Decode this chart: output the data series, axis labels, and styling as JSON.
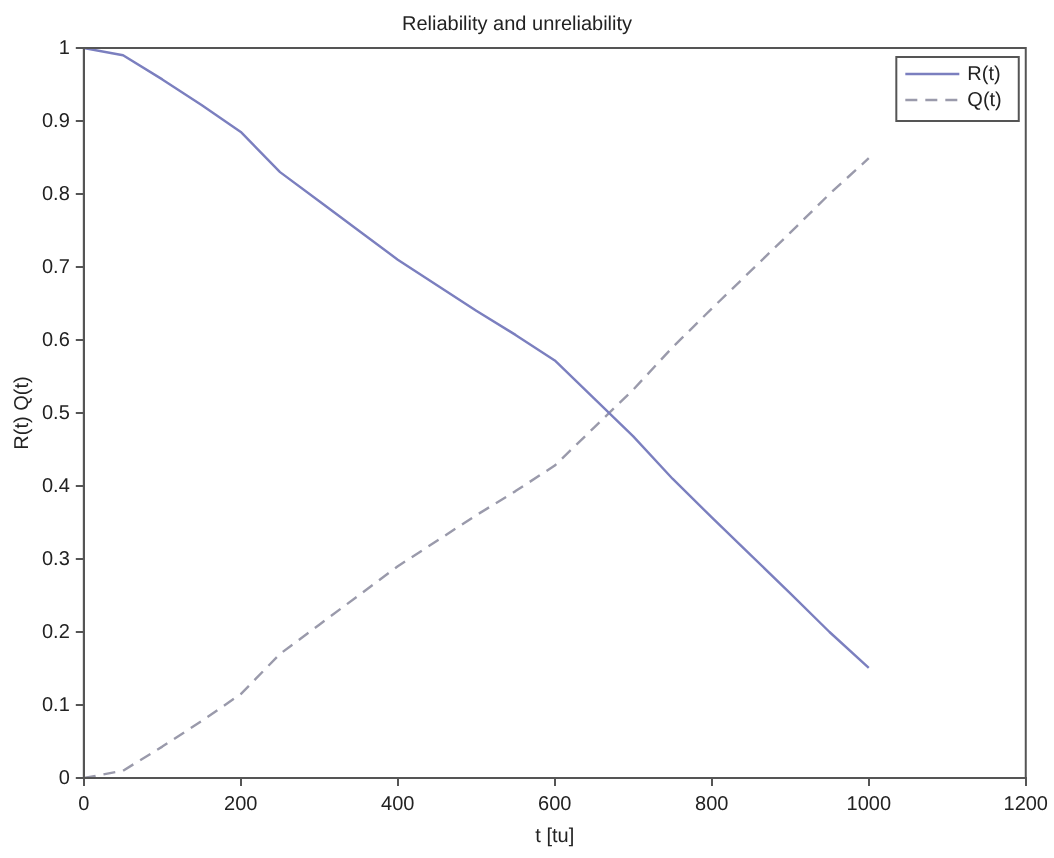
{
  "chart_data": {
    "type": "line",
    "title": "Reliability and unreliability",
    "xlabel": "t [tu]",
    "ylabel": "R(t) Q(t)",
    "x": [
      0,
      50,
      100,
      150,
      200,
      250,
      300,
      350,
      400,
      450,
      500,
      550,
      600,
      650,
      700,
      750,
      800,
      850,
      900,
      950,
      1000
    ],
    "series": [
      {
        "name": "R(t)",
        "color": "#7b7fbf",
        "line_style": "solid",
        "values": [
          1,
          0.99,
          0.957,
          0.922,
          0.885,
          0.83,
          0.79,
          0.75,
          0.71,
          0.675,
          0.64,
          0.607,
          0.572,
          0.52,
          0.468,
          0.41,
          0.357,
          0.305,
          0.253,
          0.2,
          0.151
        ]
      },
      {
        "name": "Q(t)",
        "color": "#9a9aab",
        "line_style": "dashed",
        "values": [
          0,
          0.01,
          0.043,
          0.078,
          0.115,
          0.17,
          0.21,
          0.25,
          0.29,
          0.325,
          0.36,
          0.393,
          0.428,
          0.48,
          0.532,
          0.59,
          0.643,
          0.695,
          0.747,
          0.8,
          0.849
        ]
      }
    ],
    "xlim": [
      0,
      1200
    ],
    "xticks": [
      0,
      200,
      400,
      600,
      800,
      1000,
      1200
    ],
    "ylim": [
      0,
      1
    ],
    "yticks": [
      0,
      0.1,
      0.2,
      0.3,
      0.4,
      0.5,
      0.6,
      0.7,
      0.8,
      0.9,
      1
    ],
    "grid": false,
    "legend": "top right",
    "marker": "none"
  }
}
